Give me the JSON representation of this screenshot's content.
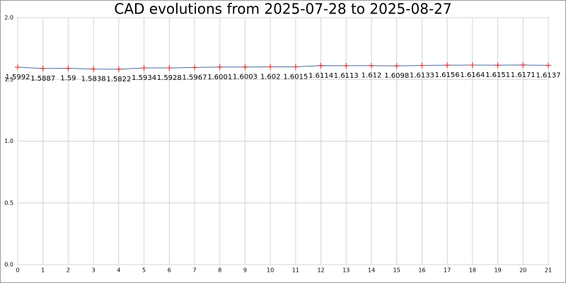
{
  "chart_data": {
    "type": "line",
    "title": "CAD evolutions from 2025-07-28 to 2025-08-27",
    "x": [
      0,
      1,
      2,
      3,
      4,
      5,
      6,
      7,
      8,
      9,
      10,
      11,
      12,
      13,
      14,
      15,
      16,
      17,
      18,
      19,
      20,
      21
    ],
    "series": [
      {
        "name": "CAD",
        "color": "#4a6fa5",
        "marker_color": "#e02020",
        "values": [
          1.5992,
          1.5887,
          1.59,
          1.5838,
          1.5822,
          1.5934,
          1.5928,
          1.5967,
          1.6001,
          1.6003,
          1.602,
          1.6015,
          1.6114,
          1.6113,
          1.612,
          1.6098,
          1.6133,
          1.6156,
          1.6164,
          1.6151,
          1.6171,
          1.6137
        ]
      }
    ],
    "xlim": [
      0,
      21
    ],
    "xticks": [
      0,
      1,
      2,
      3,
      4,
      5,
      6,
      7,
      8,
      9,
      10,
      11,
      12,
      13,
      14,
      15,
      16,
      17,
      18,
      19,
      20,
      21
    ],
    "ylim": [
      0,
      2
    ],
    "yticks": [
      {
        "value": 0,
        "label": "0.0"
      },
      {
        "value": 0.5,
        "label": "0.5"
      },
      {
        "value": 1,
        "label": "1.0"
      },
      {
        "value": 1.5,
        "label": "1.5"
      },
      {
        "value": 2,
        "label": "2.0"
      }
    ],
    "grid": true
  }
}
